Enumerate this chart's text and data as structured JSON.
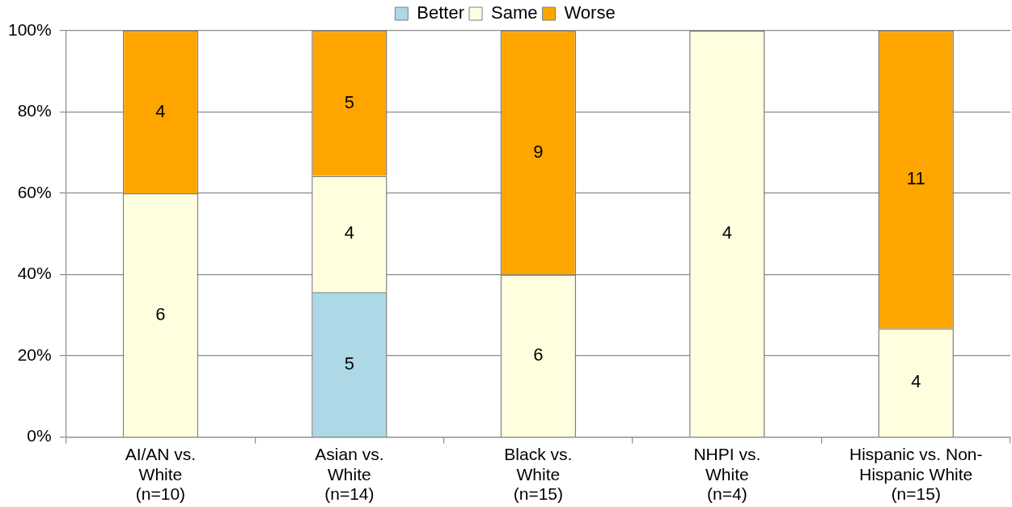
{
  "chart_data": {
    "type": "bar",
    "stacked": true,
    "categories": [
      "AI/AN vs.\nWhite\n(n=10)",
      "Asian vs.\nWhite\n(n=14)",
      "Black vs.\nWhite\n(n=15)",
      "NHPI vs.\nWhite\n(n=4)",
      "Hispanic vs. Non-\nHispanic White\n(n=15)"
    ],
    "series": [
      {
        "name": "Better",
        "color": "#add8e6",
        "values": [
          0,
          35.7,
          0,
          0,
          0
        ]
      },
      {
        "name": "Same",
        "color": "#ffffe0",
        "values": [
          60,
          28.6,
          40,
          100,
          26.7
        ]
      },
      {
        "name": "Worse",
        "color": "#ffa500",
        "values": [
          40,
          35.7,
          60,
          0,
          73.3
        ]
      }
    ],
    "annotations": [
      "6",
      "4",
      "5",
      "4",
      "5",
      "6",
      "9",
      "4",
      "4",
      "11"
    ],
    "ylim": [
      0,
      100
    ],
    "yticks": [
      {
        "value": 0,
        "label": "0%"
      },
      {
        "value": 20,
        "label": "20%"
      },
      {
        "value": 40,
        "label": "40%"
      },
      {
        "value": 60,
        "label": "60%"
      },
      {
        "value": 80,
        "label": "80%"
      },
      {
        "value": 100,
        "label": "100%"
      }
    ],
    "grid": "y",
    "legend": "top"
  }
}
